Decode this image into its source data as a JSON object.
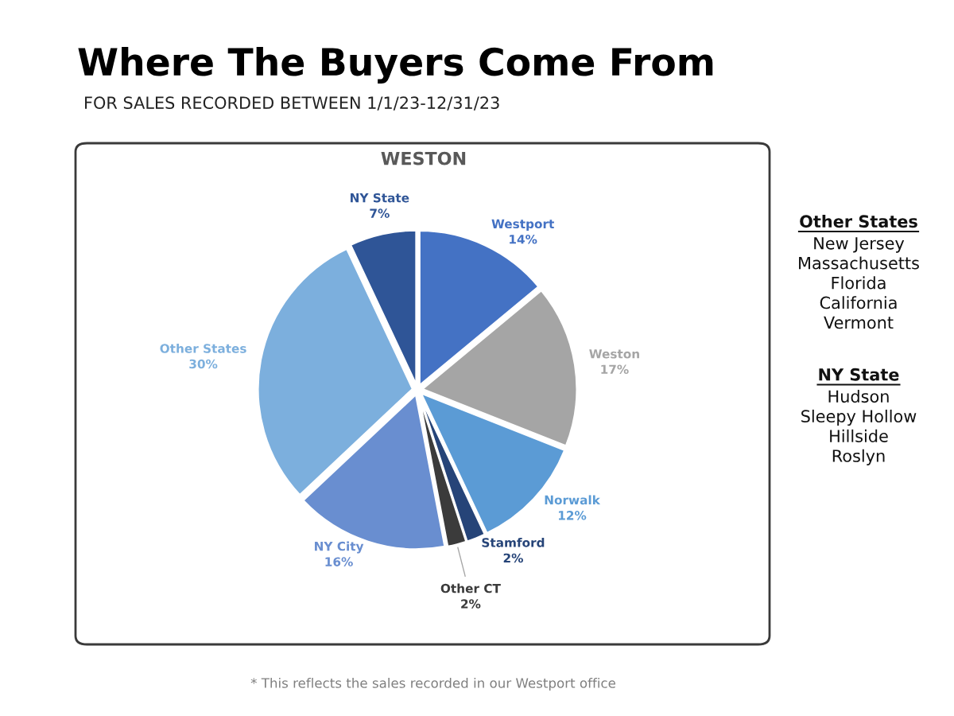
{
  "chart_data": {
    "type": "pie",
    "title": "Where The Buyers Come From",
    "subtitle": "FOR SALES RECORDED BETWEEN 1/1/23-12/31/23",
    "categories": [
      "Westport",
      "Weston",
      "Norwalk",
      "Stamford",
      "Other CT",
      "NY City",
      "Other States",
      "NY State"
    ],
    "values": [
      14,
      17,
      12,
      2,
      2,
      16,
      30,
      7
    ],
    "value_labels": [
      "14%",
      "17%",
      "12%",
      "2%",
      "2%",
      "16%",
      "30%",
      "7%"
    ],
    "colors": [
      "#4472c4",
      "#a5a5a5",
      "#5b9bd5",
      "#264478",
      "#3b3b3b",
      "#698ed0",
      "#7cafdd",
      "#2f5597"
    ],
    "annotations": [
      "WESTON",
      "Other States",
      "New Jersey\nMassachusetts\nFlorida\nCalifornia\nVermont",
      "NY State",
      "Hudson\nSleepy Hollow\nHillside\nRoslyn",
      "* This reflects the sales recorded in our Westport office"
    ]
  }
}
